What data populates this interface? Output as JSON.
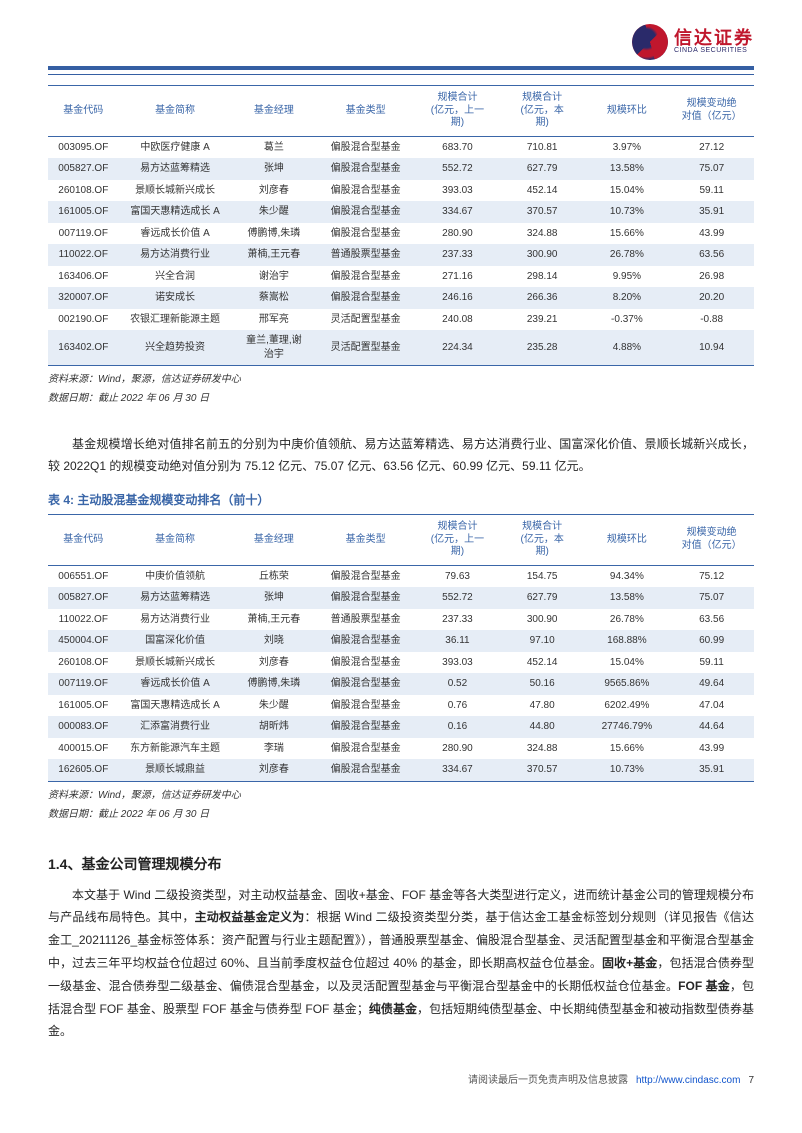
{
  "brand": {
    "cn": "信达证券",
    "en": "CINDA SECURITIES"
  },
  "colors": {
    "accent": "#355fa3",
    "header_text": "#3a66a8",
    "row_alt": "#e6edf6",
    "brand_red": "#c0172d",
    "brand_navy": "#2a2a6a",
    "text": "#333333",
    "link": "#1155cc"
  },
  "typography": {
    "body_pt": 12,
    "table_pt": 10,
    "title_pt": 14
  },
  "table_common": {
    "columns": [
      "基金代码",
      "基金简称",
      "基金经理",
      "基金类型",
      "规模合计\n(亿元，上一\n期)",
      "规模合计\n(亿元，本\n期)",
      "规模环比",
      "规模变动绝\n对值（亿元）"
    ],
    "col_widths_pct": [
      10,
      16,
      12,
      14,
      12,
      12,
      12,
      12
    ]
  },
  "table1": {
    "rows": [
      [
        "003095.OF",
        "中欧医疗健康 A",
        "葛兰",
        "偏股混合型基金",
        "683.70",
        "710.81",
        "3.97%",
        "27.12"
      ],
      [
        "005827.OF",
        "易方达蓝筹精选",
        "张坤",
        "偏股混合型基金",
        "552.72",
        "627.79",
        "13.58%",
        "75.07"
      ],
      [
        "260108.OF",
        "景顺长城新兴成长",
        "刘彦春",
        "偏股混合型基金",
        "393.03",
        "452.14",
        "15.04%",
        "59.11"
      ],
      [
        "161005.OF",
        "富国天惠精选成长 A",
        "朱少醒",
        "偏股混合型基金",
        "334.67",
        "370.57",
        "10.73%",
        "35.91"
      ],
      [
        "007119.OF",
        "睿远成长价值 A",
        "傅鹏博,朱璘",
        "偏股混合型基金",
        "280.90",
        "324.88",
        "15.66%",
        "43.99"
      ],
      [
        "110022.OF",
        "易方达消费行业",
        "萧楠,王元春",
        "普通股票型基金",
        "237.33",
        "300.90",
        "26.78%",
        "63.56"
      ],
      [
        "163406.OF",
        "兴全合润",
        "谢治宇",
        "偏股混合型基金",
        "271.16",
        "298.14",
        "9.95%",
        "26.98"
      ],
      [
        "320007.OF",
        "诺安成长",
        "蔡嵩松",
        "偏股混合型基金",
        "246.16",
        "266.36",
        "8.20%",
        "20.20"
      ],
      [
        "002190.OF",
        "农银汇理新能源主题",
        "邢军亮",
        "灵活配置型基金",
        "240.08",
        "239.21",
        "-0.37%",
        "-0.88"
      ],
      [
        "163402.OF",
        "兴全趋势投资",
        "童兰,董理,谢\n治宇",
        "灵活配置型基金",
        "224.34",
        "235.28",
        "4.88%",
        "10.94"
      ]
    ]
  },
  "sourceNote1": "资料来源：Wind，聚源，信达证券研发中心",
  "sourceNote2": "数据日期：截止 2022 年 06 月 30 日",
  "para1": "基金规模增长绝对值排名前五的分别为中庚价值领航、易方达蓝筹精选、易方达消费行业、国富深化价值、景顺长城新兴成长，较 2022Q1 的规模变动绝对值分别为 75.12 亿元、75.07 亿元、63.56 亿元、60.99 亿元、59.11 亿元。",
  "table2Title": "表 4:  主动股混基金规模变动排名（前十）",
  "table2": {
    "rows": [
      [
        "006551.OF",
        "中庚价值领航",
        "丘栋荣",
        "偏股混合型基金",
        "79.63",
        "154.75",
        "94.34%",
        "75.12"
      ],
      [
        "005827.OF",
        "易方达蓝筹精选",
        "张坤",
        "偏股混合型基金",
        "552.72",
        "627.79",
        "13.58%",
        "75.07"
      ],
      [
        "110022.OF",
        "易方达消费行业",
        "萧楠,王元春",
        "普通股票型基金",
        "237.33",
        "300.90",
        "26.78%",
        "63.56"
      ],
      [
        "450004.OF",
        "国富深化价值",
        "刘晓",
        "偏股混合型基金",
        "36.11",
        "97.10",
        "168.88%",
        "60.99"
      ],
      [
        "260108.OF",
        "景顺长城新兴成长",
        "刘彦春",
        "偏股混合型基金",
        "393.03",
        "452.14",
        "15.04%",
        "59.11"
      ],
      [
        "007119.OF",
        "睿远成长价值 A",
        "傅鹏博,朱璘",
        "偏股混合型基金",
        "0.52",
        "50.16",
        "9565.86%",
        "49.64"
      ],
      [
        "161005.OF",
        "富国天惠精选成长 A",
        "朱少醒",
        "偏股混合型基金",
        "0.76",
        "47.80",
        "6202.49%",
        "47.04"
      ],
      [
        "000083.OF",
        "汇添富消费行业",
        "胡昕炜",
        "偏股混合型基金",
        "0.16",
        "44.80",
        "27746.79%",
        "44.64"
      ],
      [
        "400015.OF",
        "东方新能源汽车主题",
        "李瑞",
        "偏股混合型基金",
        "280.90",
        "324.88",
        "15.66%",
        "43.99"
      ],
      [
        "162605.OF",
        "景顺长城鼎益",
        "刘彦春",
        "偏股混合型基金",
        "334.67",
        "370.57",
        "10.73%",
        "35.91"
      ]
    ]
  },
  "sectionTitle": "1.4、基金公司管理规模分布",
  "defPara": {
    "t1": "本文基于 Wind 二级投资类型，对主动权益基金、固收+基金、FOF 基金等各大类型进行定义，进而统计基金公司的管理规模分布与产品线布局特色。其中，",
    "b1": "主动权益基金定义为",
    "t2": "：根据 Wind 二级投资类型分类，基于信达金工基金标签划分规则（详见报告《信达金工_20211126_基金标签体系：资产配置与行业主题配置》），普通股票型基金、偏股混合型基金、灵活配置型基金和平衡混合型基金中，过去三年平均权益仓位超过 60%、且当前季度权益仓位超过 40% 的基金，即长期高权益仓位基金。",
    "b2": "固收+基金",
    "t3": "，包括混合债券型一级基金、混合债券型二级基金、偏债混合型基金，以及灵活配置型基金与平衡混合型基金中的长期低权益仓位基金。",
    "b3": "FOF 基金",
    "t4": "，包括混合型 FOF 基金、股票型 FOF 基金与债券型 FOF 基金；",
    "b4": "纯债基金",
    "t5": "，包括短期纯债型基金、中长期纯债型基金和被动指数型债券基金。"
  },
  "footer": {
    "text": "请阅读最后一页免责声明及信息披露",
    "url": "http://www.cindasc.com",
    "page": "7"
  }
}
